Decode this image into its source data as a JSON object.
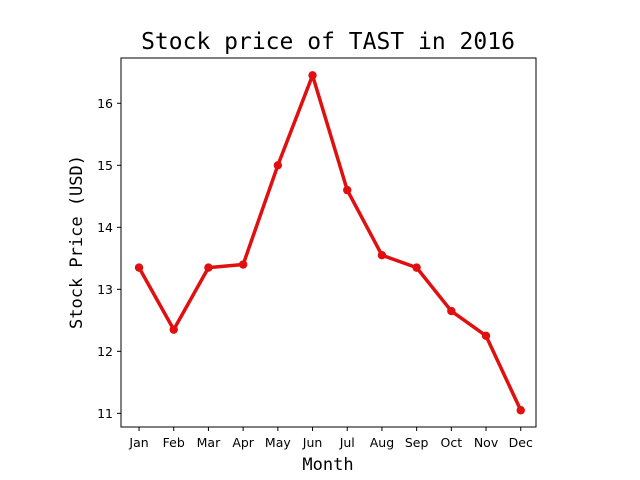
{
  "chart_data": {
    "type": "line",
    "title": "Stock price of TAST in 2016",
    "xlabel": "Month",
    "ylabel": "Stock Price (USD)",
    "categories": [
      "Jan",
      "Feb",
      "Mar",
      "Apr",
      "May",
      "Jun",
      "Jul",
      "Aug",
      "Sep",
      "Oct",
      "Nov",
      "Dec"
    ],
    "series": [
      {
        "values": [
          13.35,
          12.35,
          13.35,
          13.4,
          15.0,
          16.45,
          14.6,
          13.55,
          13.35,
          12.65,
          12.25,
          11.05
        ]
      }
    ],
    "yticks": [
      11,
      12,
      13,
      14,
      15,
      16
    ],
    "ylim": [
      10.78,
      16.73
    ],
    "grid": false,
    "line_color": "#e01010"
  }
}
